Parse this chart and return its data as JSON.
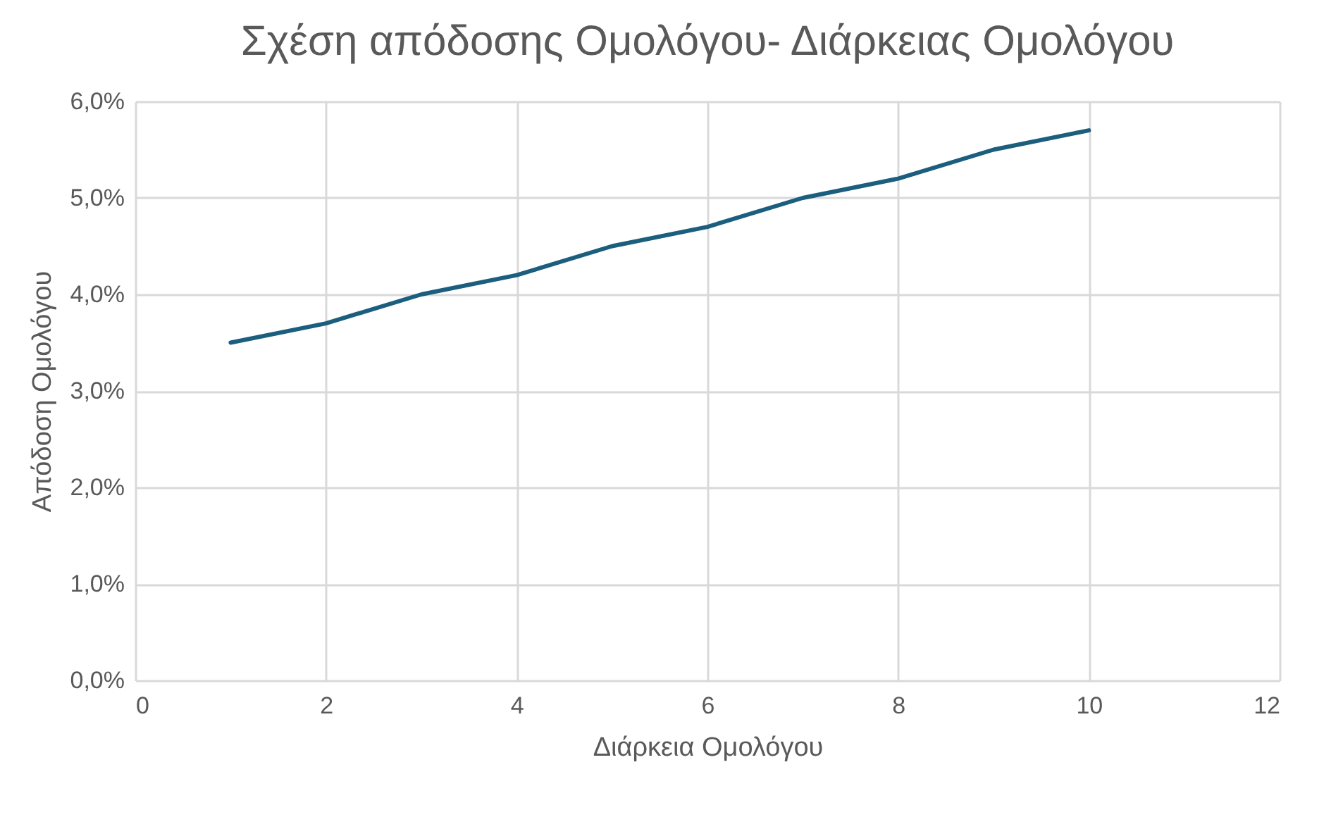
{
  "chart_data": {
    "type": "line",
    "title": "Σχέση απόδοσης Ομολόγου- Διάρκειας Ομολόγου",
    "xlabel": "Διάρκεια Ομολόγου",
    "ylabel": "Απόδοση Ομολόγου",
    "x": [
      1,
      2,
      3,
      4,
      5,
      6,
      7,
      8,
      9,
      10
    ],
    "series": [
      {
        "color": "#1b5e7e",
        "values": [
          3.5,
          3.7,
          4.0,
          4.2,
          4.5,
          4.7,
          5.0,
          5.2,
          5.5,
          5.7
        ]
      }
    ],
    "xlim": [
      0,
      12
    ],
    "xticks": [
      0,
      2,
      4,
      6,
      8,
      10,
      12
    ],
    "ylim": [
      0,
      6
    ],
    "yticks": [
      {
        "value": 0,
        "label": "0,0%"
      },
      {
        "value": 1,
        "label": "1,0%"
      },
      {
        "value": 2,
        "label": "2,0%"
      },
      {
        "value": 3,
        "label": "3,0%"
      },
      {
        "value": 4,
        "label": "4,0%"
      },
      {
        "value": 5,
        "label": "5,0%"
      },
      {
        "value": 6,
        "label": "6,0%"
      }
    ],
    "grid": true,
    "marker": "none",
    "line_style": "solid"
  }
}
